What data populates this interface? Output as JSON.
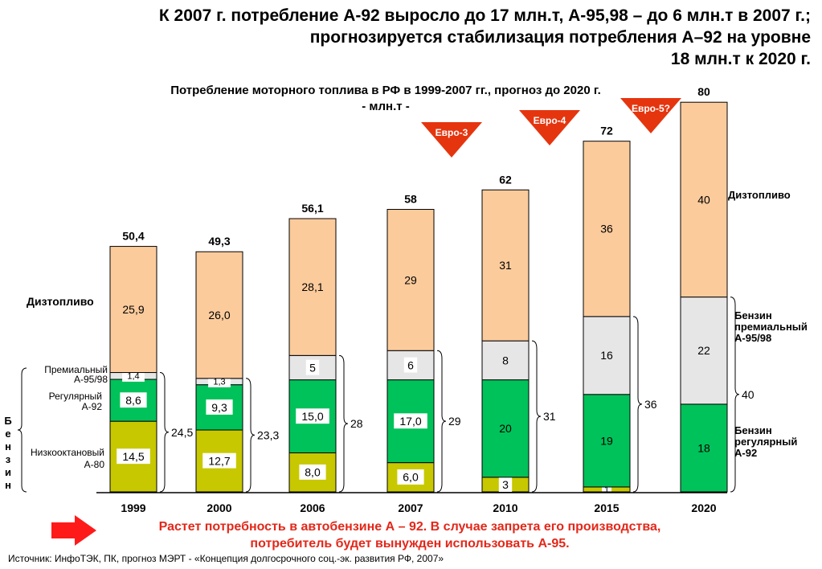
{
  "headline": {
    "line1": "К 2007 г. потребление А-92 выросло до 17 млн.т, А-95,98 – до 6 млн.т в 2007 г.;",
    "line2": "прогнозируется стабилизация потребления А–92 на уровне",
    "line3": "18 млн.т к 2020 г."
  },
  "chart_title": {
    "line1": "Потребление моторного топлива  в РФ в 1999-2007 гг., прогноз до 2020 г.",
    "line2": "- млн.т -"
  },
  "colors": {
    "diesel": "#fccb9c",
    "premium": "#e6e6e6",
    "regular": "#00c25a",
    "lowoctane": "#c8c800",
    "euro_badge": "#e5350f",
    "footer_text": "#e3281a"
  },
  "chart_data": {
    "type": "bar",
    "stacked": true,
    "categories": [
      "1999",
      "2000",
      "2006",
      "2007",
      "2010",
      "2015",
      "2020"
    ],
    "series": [
      {
        "name": "Низкооктановый А-80",
        "values": [
          14.5,
          12.7,
          8.0,
          6.0,
          3,
          null,
          null
        ],
        "labels": [
          "14,5",
          "12,7",
          "8,0",
          "6,0",
          "3",
          "",
          ""
        ]
      },
      {
        "name": "Регулярный А-92",
        "values": [
          8.6,
          9.3,
          15.0,
          17.0,
          20,
          19,
          18
        ],
        "labels": [
          "8,6",
          "9,3",
          "15,0",
          "17,0",
          "20",
          "19",
          "18"
        ]
      },
      {
        "name": "Премиальный А-95/98",
        "values": [
          1.4,
          1.3,
          5,
          6,
          8,
          16,
          22
        ],
        "labels": [
          "1,4",
          "1,3",
          "5",
          "6",
          "8",
          "16",
          "22"
        ]
      },
      {
        "name": "Дизтопливо",
        "values": [
          25.9,
          26.0,
          28.1,
          29,
          31,
          36,
          40
        ],
        "labels": [
          "25,9",
          "26,0",
          "28,1",
          "29",
          "31",
          "36",
          "40"
        ]
      }
    ],
    "extra_segment_2015": {
      "value": 1,
      "label": "1"
    },
    "totals": [
      "50,4",
      "49,3",
      "56,1",
      "58",
      "62",
      "72",
      "80"
    ],
    "gasoline_totals": [
      "24,5",
      "23,3",
      "28",
      "29",
      "31",
      "36",
      "40"
    ],
    "left_labels": {
      "diesel": "Дизтопливо",
      "premium_line1": "Премиальный",
      "premium_line2": "А-95/98",
      "regular_line1": "Регулярный",
      "regular_line2": "А-92",
      "low_line1": "Низкооктановый",
      "low_line2": "А-80",
      "gasoline_vertical": [
        "Б",
        "е",
        "н",
        "з",
        "и",
        "н"
      ]
    },
    "right_labels": {
      "diesel": "Дизтопливо",
      "premium": [
        "Бензин",
        "премиальный",
        "А-95/98"
      ],
      "regular": [
        "Бензин",
        "регулярный",
        "А-92"
      ]
    },
    "euro_badges": [
      {
        "label": "Евро-3",
        "after": "2007"
      },
      {
        "label": "Евро-4",
        "after": "2010"
      },
      {
        "label": "Евро-5?",
        "after": "2015"
      }
    ]
  },
  "footer": {
    "line1": "Растет потребность в автобензине А – 92. В случае запрета его производства,",
    "line2": "потребитель  будет вынужден использовать А-95."
  },
  "source": "Источник: ИнфоТЭК, ПК, прогноз МЭРТ - «Концепция долгосрочного соц.-эк. развития РФ, 2007»"
}
